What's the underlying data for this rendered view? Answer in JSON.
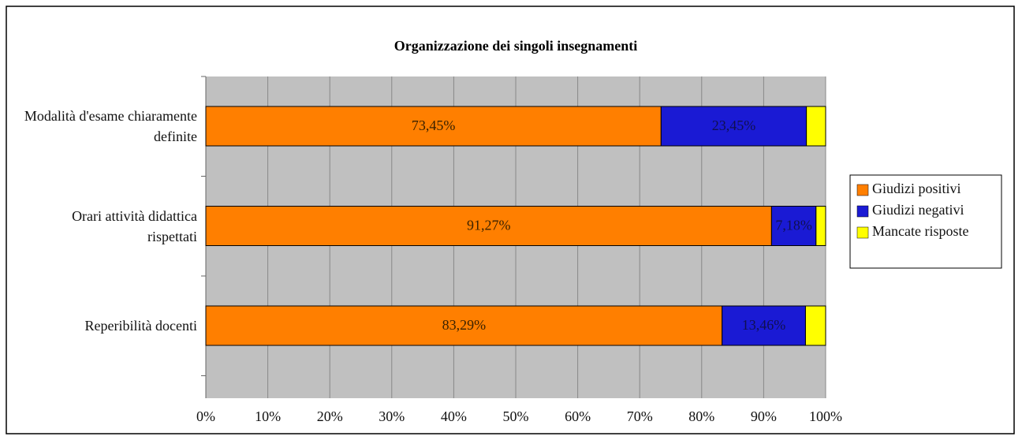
{
  "chart_data": {
    "type": "stacked-bar-horizontal",
    "title": "Organizzazione dei singoli insegnamenti",
    "categories": [
      "Modalità d'esame chiaramente definite",
      "Orari attività didattica rispettati",
      "Reperibilità docenti"
    ],
    "series": [
      {
        "name": "Giudizi positivi",
        "color": "#ff7f00",
        "values": [
          73.45,
          91.27,
          83.29
        ],
        "value_labels": [
          "73,45%",
          "91,27%",
          "83,29%"
        ]
      },
      {
        "name": "Giudizi negativi",
        "color": "#1a1ad4",
        "values": [
          23.45,
          7.18,
          13.46
        ],
        "value_labels": [
          "23,45%",
          "7,18%",
          "13,46%"
        ]
      },
      {
        "name": "Mancate risposte",
        "color": "#ffff00",
        "values": [
          3.1,
          1.55,
          3.25
        ]
      }
    ],
    "xlim": [
      0,
      100
    ],
    "xticks": [
      {
        "value": 0,
        "label": "0%"
      },
      {
        "value": 10,
        "label": "10%"
      },
      {
        "value": 20,
        "label": "20%"
      },
      {
        "value": 30,
        "label": "30%"
      },
      {
        "value": 40,
        "label": "40%"
      },
      {
        "value": 50,
        "label": "50%"
      },
      {
        "value": 60,
        "label": "60%"
      },
      {
        "value": 70,
        "label": "70%"
      },
      {
        "value": 80,
        "label": "80%"
      },
      {
        "value": 90,
        "label": "90%"
      },
      {
        "value": 100,
        "label": "100%"
      }
    ],
    "grid": true,
    "legend": "right"
  }
}
